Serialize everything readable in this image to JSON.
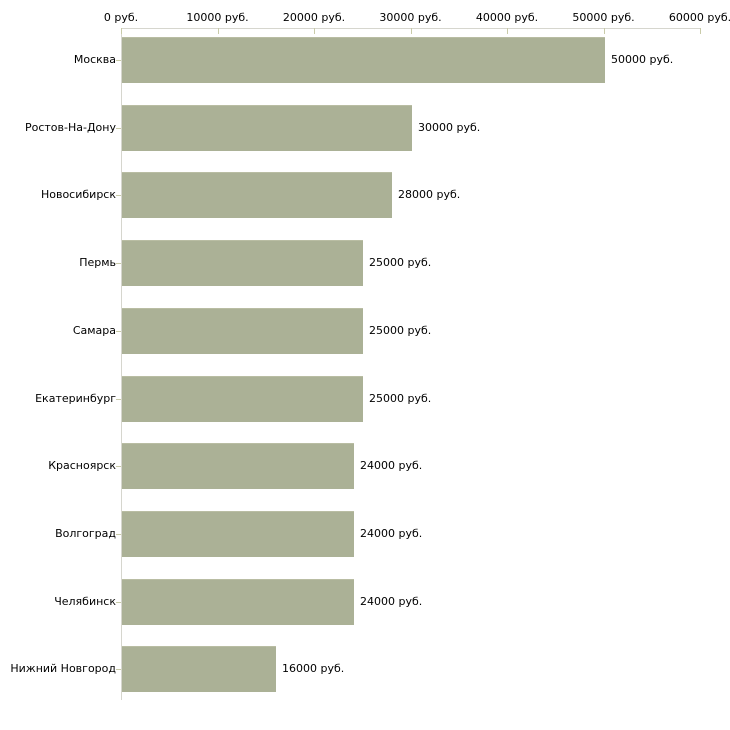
{
  "chart_data": {
    "type": "bar",
    "orientation": "horizontal",
    "categories": [
      "Москва",
      "Ростов-На-Дону",
      "Новосибирск",
      "Пермь",
      "Самара",
      "Екатеринбург",
      "Красноярск",
      "Волгоград",
      "Челябинск",
      "Нижний Новгород"
    ],
    "values": [
      50000,
      30000,
      28000,
      25000,
      25000,
      25000,
      24000,
      24000,
      24000,
      16000
    ],
    "value_labels": [
      "50000 руб.",
      "30000 руб.",
      "28000 руб.",
      "25000 руб.",
      "25000 руб.",
      "25000 руб.",
      "24000 руб.",
      "24000 руб.",
      "24000 руб.",
      "16000 руб."
    ],
    "x_tick_labels": [
      "0 руб.",
      "10000 руб.",
      "20000 руб.",
      "30000 руб.",
      "40000 руб.",
      "50000 руб.",
      "60000 руб."
    ],
    "x_tick_values": [
      0,
      10000,
      20000,
      30000,
      40000,
      50000,
      60000
    ],
    "xlim": [
      0,
      60000
    ],
    "unit": "руб.",
    "xlabel": "",
    "ylabel": "",
    "grid": "off",
    "legend": "none",
    "colors": {
      "bar": "#abb196",
      "bar_top_edge": "#b9bda3",
      "axis_line": "#d6d6ce",
      "tick": "#c9cba9",
      "text": "#000000",
      "background": "#ffffff"
    }
  }
}
